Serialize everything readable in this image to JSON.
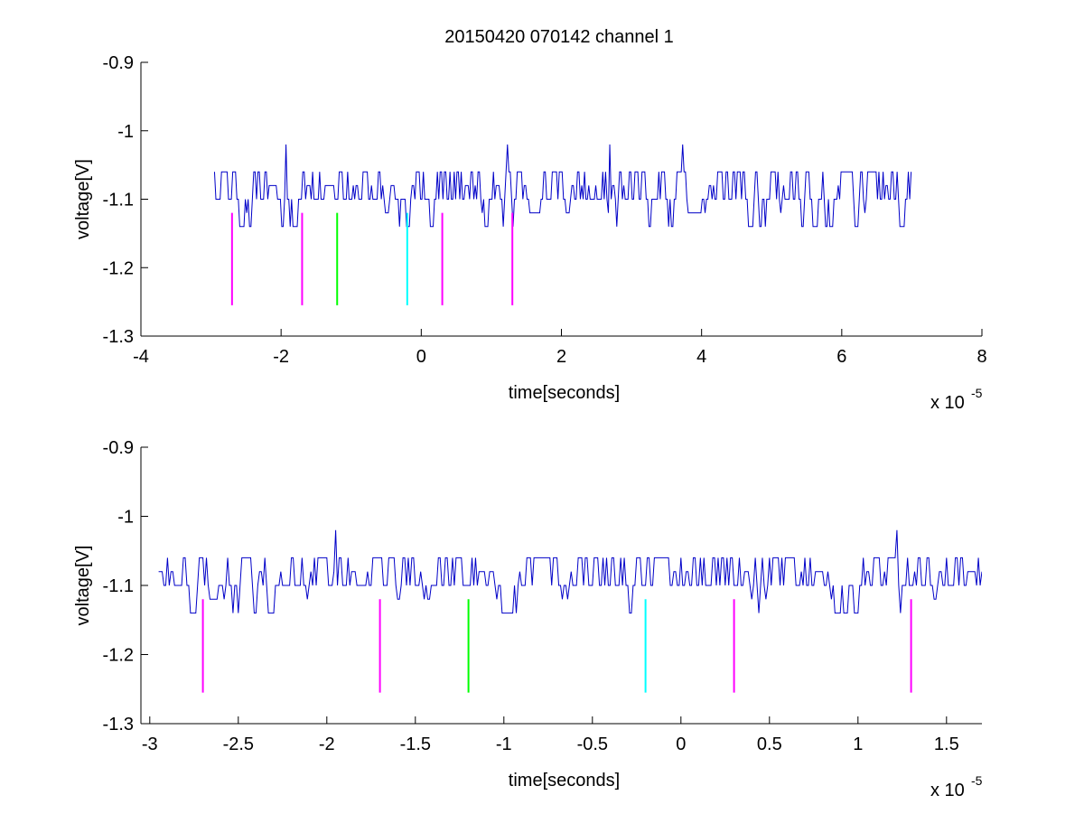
{
  "figure_title": "20150420 070142 channel 1",
  "chart_data": [
    {
      "type": "line",
      "title": "20150420 070142 channel 1",
      "xlabel": "time[seconds]",
      "ylabel": "voltage[V]",
      "x_multiplier_label": "x 10",
      "x_multiplier_exponent": "-5",
      "xlim": [
        -4,
        8
      ],
      "ylim": [
        -1.3,
        -0.9
      ],
      "xticks": [
        "-4",
        "-2",
        "0",
        "2",
        "4",
        "6",
        "8"
      ],
      "yticks": [
        "-0.9",
        "-1",
        "-1.1",
        "-1.2",
        "-1.3"
      ],
      "grid": false,
      "signal": {
        "color": "#0000c8",
        "x_start": -2.95,
        "x_end": 7.0,
        "step": 0.02,
        "base": -1.1,
        "up_levels": [
          -1.06,
          -1.08
        ],
        "down_levels": [
          -1.14,
          -1.12
        ],
        "spikes": [
          {
            "x": -1.94,
            "y": -1.02
          },
          {
            "x": 1.22,
            "y": -1.02
          },
          {
            "x": 2.68,
            "y": -1.02
          },
          {
            "x": 3.72,
            "y": -1.02
          }
        ]
      },
      "markers": [
        {
          "x": -2.7,
          "y_top": -1.12,
          "y_bottom": -1.255,
          "color": "#ff00ff"
        },
        {
          "x": -1.7,
          "y_top": -1.12,
          "y_bottom": -1.255,
          "color": "#ff00ff"
        },
        {
          "x": -1.2,
          "y_top": -1.12,
          "y_bottom": -1.255,
          "color": "#00ff00"
        },
        {
          "x": -0.2,
          "y_top": -1.12,
          "y_bottom": -1.255,
          "color": "#00ffff"
        },
        {
          "x": 0.3,
          "y_top": -1.12,
          "y_bottom": -1.255,
          "color": "#ff00ff"
        },
        {
          "x": 1.3,
          "y_top": -1.12,
          "y_bottom": -1.255,
          "color": "#ff00ff"
        }
      ]
    },
    {
      "type": "line",
      "xlabel": "time[seconds]",
      "ylabel": "voltage[V]",
      "x_multiplier_label": "x 10",
      "x_multiplier_exponent": "-5",
      "xlim": [
        -3.05,
        1.7
      ],
      "ylim": [
        -1.3,
        -0.9
      ],
      "xticks": [
        "-3",
        "-2.5",
        "-2",
        "-1.5",
        "-1",
        "-0.5",
        "0",
        "0.5",
        "1",
        "1.5"
      ],
      "yticks": [
        "-0.9",
        "-1",
        "-1.1",
        "-1.2",
        "-1.3"
      ],
      "grid": false,
      "signal": {
        "color": "#0000c8",
        "x_start": -2.95,
        "x_end": 1.7,
        "step": 0.01,
        "base": -1.1,
        "up_levels": [
          -1.06,
          -1.08
        ],
        "down_levels": [
          -1.14,
          -1.12
        ],
        "spikes": [
          {
            "x": -1.95,
            "y": -1.02
          },
          {
            "x": 1.22,
            "y": -1.02
          }
        ]
      },
      "markers": [
        {
          "x": -2.7,
          "y_top": -1.12,
          "y_bottom": -1.255,
          "color": "#ff00ff"
        },
        {
          "x": -1.7,
          "y_top": -1.12,
          "y_bottom": -1.255,
          "color": "#ff00ff"
        },
        {
          "x": -1.2,
          "y_top": -1.12,
          "y_bottom": -1.255,
          "color": "#00ff00"
        },
        {
          "x": -0.2,
          "y_top": -1.12,
          "y_bottom": -1.255,
          "color": "#00ffff"
        },
        {
          "x": 0.3,
          "y_top": -1.12,
          "y_bottom": -1.255,
          "color": "#ff00ff"
        },
        {
          "x": 1.3,
          "y_top": -1.12,
          "y_bottom": -1.255,
          "color": "#ff00ff"
        }
      ]
    }
  ]
}
